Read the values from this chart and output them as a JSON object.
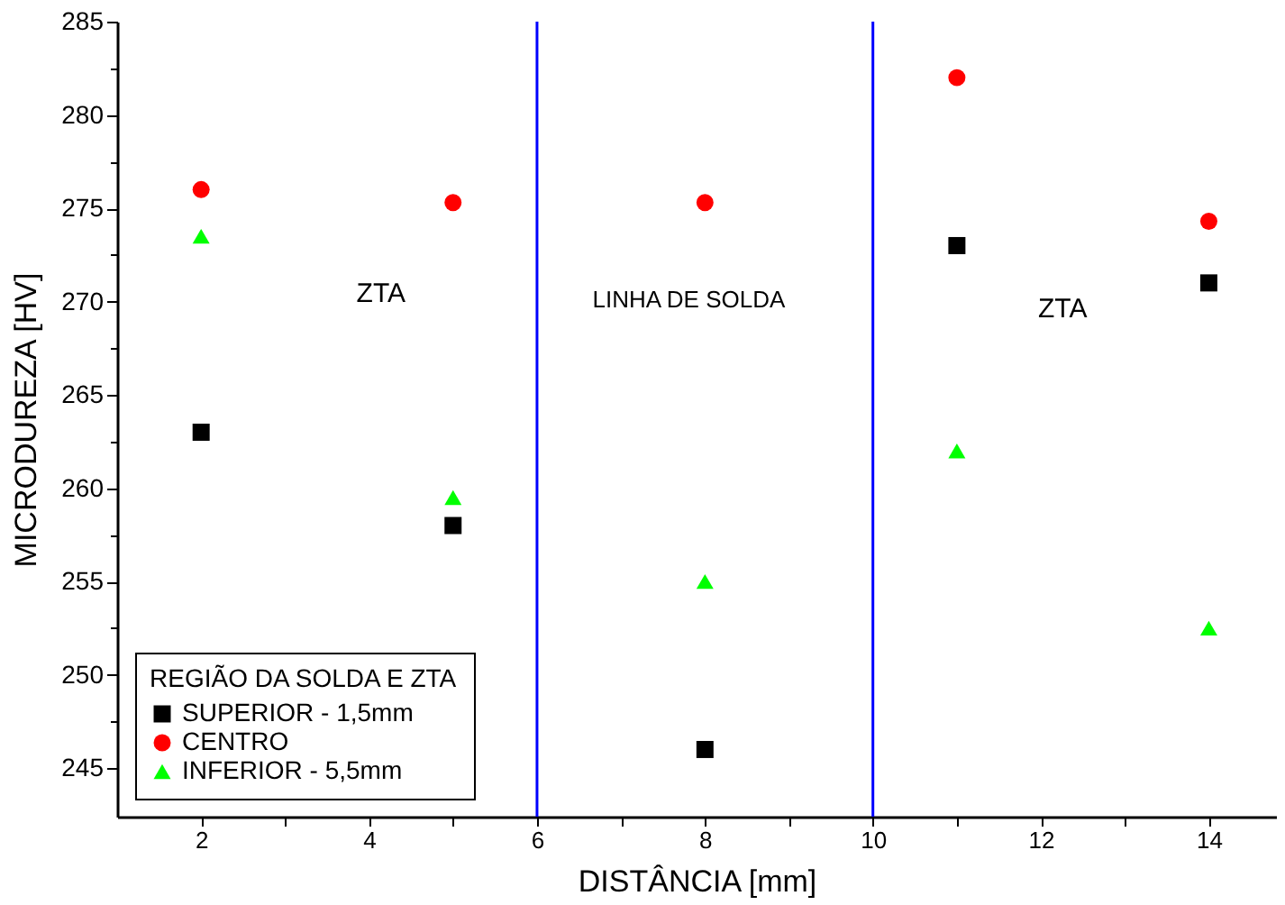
{
  "chart_data": {
    "type": "scatter",
    "xlabel": "DISTÂNCIA [mm]",
    "ylabel": "MICRODUREZA [HV]",
    "legend_title": "REGIÃO DA SOLDA E ZTA",
    "legend": "bottom left",
    "grid": false,
    "x": [
      2,
      5,
      8,
      11,
      14
    ],
    "series": [
      {
        "name": "SUPERIOR - 1,5mm",
        "color": "#000000",
        "marker": "square",
        "values": [
          263,
          258,
          246,
          273,
          271
        ]
      },
      {
        "name": "CENTRO",
        "color": "#ff0000",
        "marker": "circle",
        "values": [
          276,
          275.3,
          275.3,
          282,
          274.3
        ]
      },
      {
        "name": "INFERIOR - 5,5mm",
        "color": "#00ff00",
        "marker": "triangle",
        "values": [
          273.5,
          259.5,
          255,
          262,
          252.5
        ]
      }
    ],
    "xlim": [
      1,
      14.8
    ],
    "xticks": [
      2,
      {
        "value": 3,
        "label": null
      },
      4,
      {
        "value": 5,
        "label": null
      },
      6,
      {
        "value": 7,
        "label": null
      },
      8,
      {
        "value": 9,
        "label": null
      },
      10,
      {
        "value": 11,
        "label": null
      },
      12,
      {
        "value": 13,
        "label": null
      },
      14
    ],
    "ylim": [
      242.4,
      285
    ],
    "yticks": [
      245,
      {
        "value": 247.5,
        "label": null
      },
      250,
      {
        "value": 252.5,
        "label": null
      },
      255,
      {
        "value": 257.5,
        "label": null
      },
      260,
      {
        "value": 262.5,
        "label": null
      },
      265,
      {
        "value": 267.5,
        "label": null
      },
      270,
      {
        "value": 272.5,
        "label": null
      },
      275,
      {
        "value": 277.5,
        "label": null
      },
      280,
      {
        "value": 282.5,
        "label": null
      },
      285
    ],
    "ref_lines": [
      {
        "axis": "x",
        "value": 6,
        "color": "#0000ff"
      },
      {
        "axis": "x",
        "value": 10,
        "color": "#0000ff"
      }
    ],
    "annotations": [
      "ZTA",
      "LINHA DE SOLDA",
      "ZTA"
    ]
  }
}
